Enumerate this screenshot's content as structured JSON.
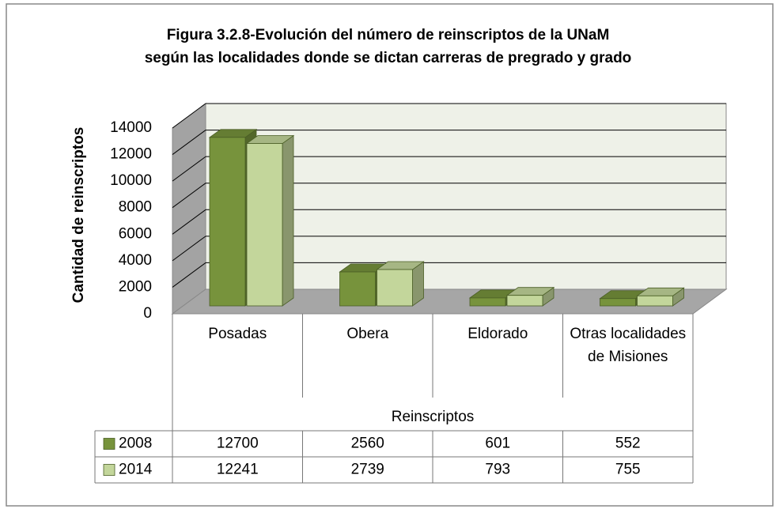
{
  "chart_data": {
    "type": "bar3d",
    "title": [
      "Figura 3.2.8-Evolución del número de reinscriptos de la UNaM",
      "según las localidades donde se dictan carreras de pregrado y grado"
    ],
    "ylabel": "Cantidad de reinscriptos",
    "xlabel": "Reinscriptos",
    "categories": [
      "Posadas",
      "Obera",
      "Eldorado",
      "Otras localidades de Misiones"
    ],
    "series": [
      {
        "name": "2008",
        "color": "#77933c",
        "values": [
          12700,
          2560,
          601,
          552
        ]
      },
      {
        "name": "2014",
        "color": "#c3d69b",
        "values": [
          12241,
          2739,
          793,
          755
        ]
      }
    ],
    "ylim": [
      0,
      14000
    ],
    "yticks": [
      0,
      2000,
      4000,
      6000,
      8000,
      10000,
      12000,
      14000
    ],
    "grid": true
  }
}
